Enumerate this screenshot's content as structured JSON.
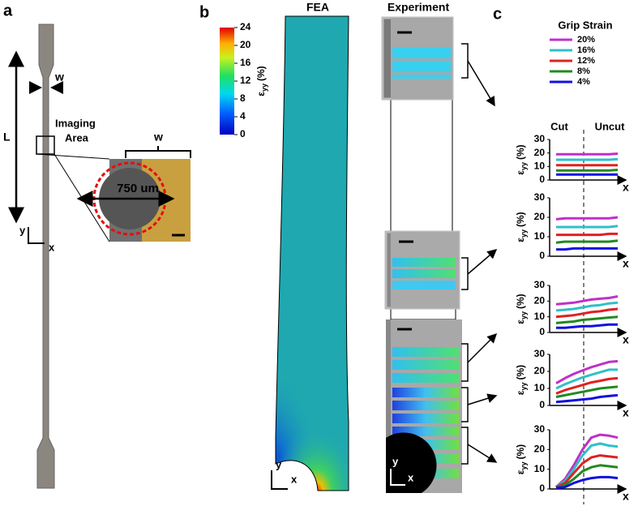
{
  "panel_a": {
    "label": "a",
    "width_label": "w",
    "length_label": "L",
    "imaging_area": [
      "Imaging",
      "Area"
    ],
    "inset_width_label": "w",
    "diameter_label": "750 um",
    "axis_y": "y",
    "axis_x": "x"
  },
  "panel_b": {
    "label": "b",
    "fea_title": "FEA",
    "experiment_title": "Experiment",
    "colorbar": {
      "label": "ε",
      "label_sub": "yy",
      "label_unit": "(%)",
      "lim": [
        0,
        24
      ],
      "ticks": [
        0,
        4,
        8,
        12,
        16,
        20,
        24
      ]
    },
    "fea_axes": {
      "y": "y",
      "x": "x"
    },
    "experiment_axes": {
      "y": "y",
      "x": "x"
    }
  },
  "panel_c": {
    "label": "c",
    "legend_title": "Grip Strain",
    "region_labels": [
      "Cut",
      "Uncut"
    ]
  },
  "chart_data": [
    {
      "type": "line",
      "ylabel": "ε",
      "ylabel_sub": "yy",
      "ylabel_unit": "(%)",
      "xlabel": "x",
      "ylim": [
        0,
        30
      ],
      "yticks": [
        0,
        10,
        20,
        30
      ],
      "series": [
        {
          "name": "20%",
          "color": "#c030c8",
          "values": [
            19,
            19,
            19,
            19,
            19,
            19,
            19,
            19.5
          ]
        },
        {
          "name": "16%",
          "color": "#30c0c8",
          "values": [
            15,
            15,
            15,
            15,
            15,
            15,
            15,
            15.5
          ]
        },
        {
          "name": "12%",
          "color": "#e02020",
          "values": [
            11,
            11,
            11,
            11,
            11,
            11,
            11,
            11
          ]
        },
        {
          "name": "8%",
          "color": "#208a20",
          "values": [
            7,
            7,
            7,
            7,
            7,
            7,
            7,
            7.5
          ]
        },
        {
          "name": "4%",
          "color": "#1010e0",
          "values": [
            4,
            4,
            4,
            4,
            4,
            4,
            4,
            4
          ]
        }
      ]
    },
    {
      "type": "line",
      "ylabel": "ε",
      "ylabel_sub": "yy",
      "ylabel_unit": "(%)",
      "xlabel": "x",
      "ylim": [
        0,
        30
      ],
      "yticks": [
        0,
        10,
        20,
        30
      ],
      "series": [
        {
          "color": "#c030c8",
          "values": [
            19,
            19.5,
            19.5,
            19.5,
            19.5,
            19.5,
            19.5,
            20
          ]
        },
        {
          "color": "#30c0c8",
          "values": [
            15,
            15,
            15,
            15,
            15,
            15,
            15,
            15.5
          ]
        },
        {
          "color": "#e02020",
          "values": [
            11,
            11,
            11,
            11,
            11,
            11,
            11.5,
            11.5
          ]
        },
        {
          "color": "#208a20",
          "values": [
            7,
            7.5,
            7.5,
            7.5,
            7.5,
            7.5,
            7.5,
            8
          ]
        },
        {
          "color": "#1010e0",
          "values": [
            3.5,
            3.5,
            4,
            4,
            4,
            4,
            4,
            4
          ]
        }
      ]
    },
    {
      "type": "line",
      "ylabel": "ε",
      "ylabel_sub": "yy",
      "ylabel_unit": "(%)",
      "xlabel": "x",
      "ylim": [
        0,
        30
      ],
      "yticks": [
        0,
        10,
        20,
        30
      ],
      "series": [
        {
          "color": "#c030c8",
          "values": [
            18,
            18.5,
            19,
            20,
            21,
            21.5,
            22,
            23
          ]
        },
        {
          "color": "#30c0c8",
          "values": [
            14,
            14.5,
            15,
            16,
            17,
            17.5,
            18.5,
            19
          ]
        },
        {
          "color": "#e02020",
          "values": [
            10,
            10.5,
            11,
            12,
            13,
            13.5,
            14.5,
            15
          ]
        },
        {
          "color": "#208a20",
          "values": [
            6,
            6.5,
            7,
            8,
            8.5,
            9,
            9.5,
            10
          ]
        },
        {
          "color": "#1010e0",
          "values": [
            3,
            3,
            3.5,
            4,
            4,
            4.5,
            5,
            5
          ]
        }
      ]
    },
    {
      "type": "line",
      "ylabel": "ε",
      "ylabel_sub": "yy",
      "ylabel_unit": "(%)",
      "xlabel": "x",
      "ylim": [
        0,
        30
      ],
      "yticks": [
        0,
        10,
        20,
        30
      ],
      "series": [
        {
          "color": "#c030c8",
          "values": [
            13,
            16,
            18.5,
            20.5,
            22.5,
            24,
            25.5,
            26
          ]
        },
        {
          "color": "#30c0c8",
          "values": [
            10,
            12.5,
            14.5,
            16.5,
            18,
            19.5,
            21,
            21
          ]
        },
        {
          "color": "#e02020",
          "values": [
            7,
            9,
            10.5,
            12,
            13.5,
            14.5,
            15.5,
            16
          ]
        },
        {
          "color": "#208a20",
          "values": [
            5,
            6,
            7,
            8,
            9,
            10,
            10.5,
            11
          ]
        },
        {
          "color": "#1010e0",
          "values": [
            2,
            2.5,
            3,
            3.5,
            4,
            5,
            5.5,
            6
          ]
        }
      ]
    },
    {
      "type": "line",
      "ylabel": "ε",
      "ylabel_sub": "yy",
      "ylabel_unit": "(%)",
      "xlabel": "x",
      "ylim": [
        0,
        30
      ],
      "yticks": [
        0,
        10,
        20,
        30
      ],
      "series": [
        {
          "color": "#c030c8",
          "values": [
            1,
            5,
            12,
            20,
            26,
            27.5,
            27,
            26
          ]
        },
        {
          "color": "#30c0c8",
          "values": [
            1,
            4,
            10,
            17,
            22,
            23,
            22,
            21.5
          ]
        },
        {
          "color": "#e02020",
          "values": [
            1,
            3,
            8,
            13,
            16,
            17,
            16.5,
            16
          ]
        },
        {
          "color": "#208a20",
          "values": [
            0.5,
            2,
            5,
            9,
            11,
            12,
            11.5,
            11
          ]
        },
        {
          "color": "#1010e0",
          "values": [
            0.5,
            1,
            3,
            4.5,
            5.5,
            6,
            6,
            5.5
          ]
        }
      ]
    }
  ]
}
